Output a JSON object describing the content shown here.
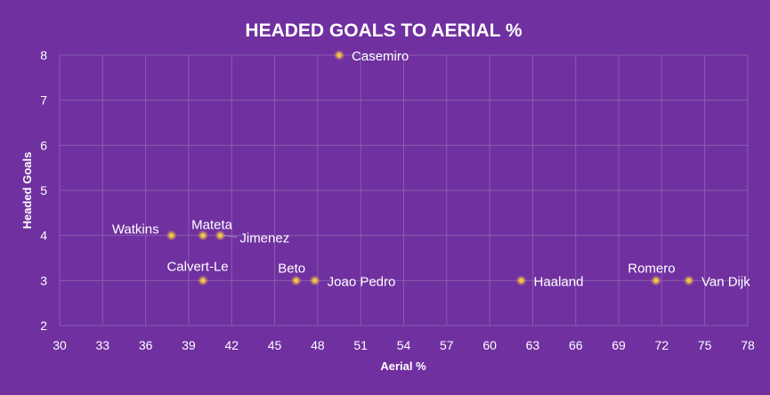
{
  "colors": {
    "background": "#7030a0",
    "gridline": "#8a5cae",
    "marker": "#f5c542",
    "marker_glow": "#ffd76a",
    "text": "#ffffff"
  },
  "chart_data": {
    "type": "scatter",
    "title": "HEADED GOALS TO AERIAL %",
    "xlabel": "Aerial %",
    "ylabel": "Headed Goals",
    "xlim": [
      30,
      78
    ],
    "ylim": [
      2,
      8
    ],
    "xticks": [
      30,
      33,
      36,
      39,
      42,
      45,
      48,
      51,
      54,
      57,
      60,
      63,
      66,
      69,
      72,
      75,
      78
    ],
    "yticks": [
      2,
      3,
      4,
      5,
      6,
      7,
      8
    ],
    "grid": true,
    "legend": "none",
    "points": [
      {
        "label": "Casemiro",
        "x": 49.5,
        "y": 8,
        "label_pos": "right"
      },
      {
        "label": "Watkins",
        "x": 37.8,
        "y": 4,
        "label_pos": "left"
      },
      {
        "label": "Mateta",
        "x": 40.0,
        "y": 4,
        "label_pos": "above-right"
      },
      {
        "label": "Jimenez",
        "x": 41.2,
        "y": 4,
        "label_pos": "right-leader"
      },
      {
        "label": "Calvert-Lewin",
        "x": 40.0,
        "y": 3,
        "label_pos": "above-left-truncated",
        "shown_text": "Calvert-Le"
      },
      {
        "label": "Beto",
        "x": 46.5,
        "y": 3,
        "label_pos": "above"
      },
      {
        "label": "Joao Pedro",
        "x": 47.8,
        "y": 3,
        "label_pos": "right"
      },
      {
        "label": "Haaland",
        "x": 62.2,
        "y": 3,
        "label_pos": "right"
      },
      {
        "label": "Romero",
        "x": 71.6,
        "y": 3,
        "label_pos": "above"
      },
      {
        "label": "Van Dijk",
        "x": 73.9,
        "y": 3,
        "label_pos": "right"
      }
    ]
  }
}
